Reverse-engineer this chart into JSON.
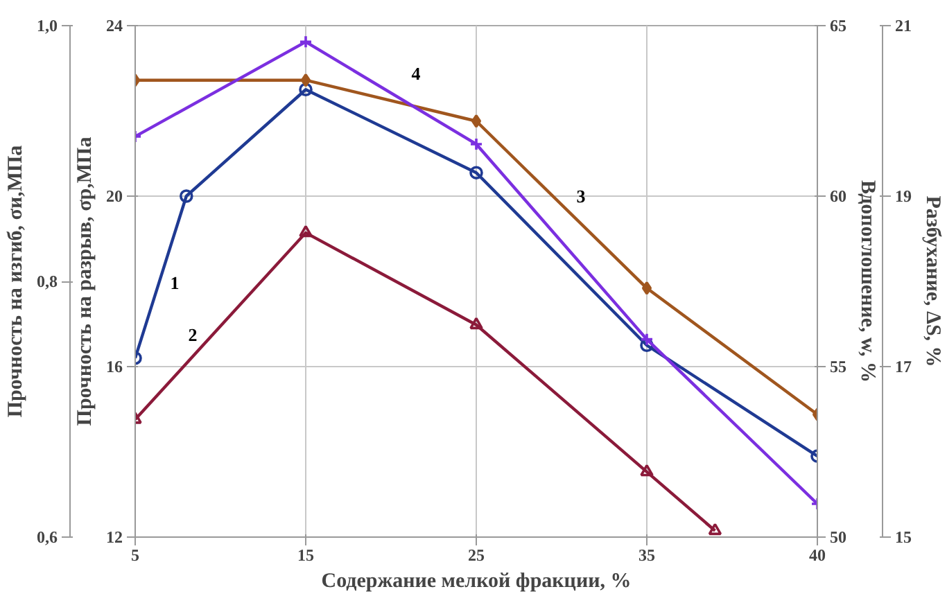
{
  "chart_data": [
    {
      "type": "line",
      "xlabel": "Содержание мелкой фракции, %",
      "ylabel": "Прочность на разрыв, σр,МПа",
      "y2label": "Прочность на изгиб, σи,МПа",
      "categories": [
        "5",
        null,
        null,
        null,
        null,
        null,
        null,
        null,
        null,
        null,
        "15",
        null,
        null,
        null,
        null,
        null,
        null,
        null,
        null,
        null,
        "25",
        null,
        null,
        null,
        null,
        null,
        null,
        null,
        null,
        null,
        "35",
        null,
        null,
        null,
        null,
        null,
        null,
        null,
        null,
        null,
        "40"
      ],
      "ylim": [
        12,
        24
      ],
      "yticks": [
        12,
        16,
        20,
        24
      ],
      "y2lim": [
        0.6,
        1.0
      ],
      "y2ticks": [
        {
          "value": 0.6,
          "label": "0,6"
        },
        {
          "value": 0.8,
          "label": "0,8"
        },
        {
          "value": 1.0,
          "label": "1,0"
        }
      ],
      "grid": true,
      "series": [
        {
          "name": "1",
          "color": "#1f3a93",
          "marker": "circle",
          "values": [
            16.2,
            null,
            null,
            20.0,
            null,
            null,
            null,
            null,
            null,
            null,
            22.5,
            null,
            null,
            null,
            null,
            null,
            null,
            null,
            null,
            null,
            20.55,
            null,
            null,
            null,
            null,
            null,
            null,
            null,
            null,
            null,
            16.5,
            null,
            null,
            null,
            null,
            null,
            null,
            null,
            null,
            null,
            13.9
          ]
        },
        {
          "name": "2",
          "color": "#8b1a3a",
          "marker": "triangle",
          "axis": "y2",
          "values": [
            0.692,
            null,
            null,
            null,
            null,
            null,
            null,
            null,
            null,
            null,
            0.838,
            null,
            null,
            null,
            null,
            null,
            null,
            null,
            null,
            null,
            0.766,
            null,
            null,
            null,
            null,
            null,
            null,
            null,
            null,
            null,
            0.651,
            null,
            null,
            null,
            0.605,
            null,
            null,
            null,
            null,
            null,
            null
          ]
        }
      ]
    },
    {
      "type": "line",
      "ylabel": "Вдопоглошение, w, %",
      "y2label": "Разбухание, ΔS, %",
      "categories": [
        "5",
        null,
        null,
        null,
        null,
        null,
        null,
        null,
        null,
        null,
        "15",
        null,
        null,
        null,
        null,
        null,
        null,
        null,
        null,
        null,
        "25",
        null,
        null,
        null,
        null,
        null,
        null,
        null,
        null,
        null,
        "35",
        null,
        null,
        null,
        null,
        null,
        null,
        null,
        null,
        null,
        "40"
      ],
      "tick_labels": "y",
      "ylim": [
        50,
        65
      ],
      "yticks": [
        50,
        55,
        60,
        65
      ],
      "y2lim": [
        15,
        21
      ],
      "y2ticks": [
        15,
        17,
        19,
        21
      ],
      "series": [
        {
          "name": "3",
          "color": "#a0561e",
          "marker": "diamond",
          "values": [
            63.4,
            null,
            null,
            null,
            null,
            null,
            null,
            null,
            null,
            null,
            63.4,
            null,
            null,
            null,
            null,
            null,
            null,
            null,
            null,
            null,
            62.2,
            null,
            null,
            null,
            null,
            null,
            null,
            null,
            null,
            null,
            57.3,
            null,
            null,
            null,
            null,
            null,
            null,
            null,
            null,
            null,
            53.6
          ]
        },
        {
          "name": "4",
          "color": "#7b2fe0",
          "marker": "cross",
          "axis": "y2",
          "values": [
            19.7,
            null,
            null,
            null,
            null,
            null,
            null,
            null,
            null,
            null,
            20.81,
            null,
            null,
            null,
            null,
            null,
            null,
            null,
            null,
            null,
            19.61,
            null,
            null,
            null,
            null,
            null,
            null,
            null,
            null,
            null,
            17.32,
            null,
            null,
            null,
            null,
            null,
            null,
            null,
            null,
            null,
            15.39
          ]
        }
      ]
    }
  ]
}
